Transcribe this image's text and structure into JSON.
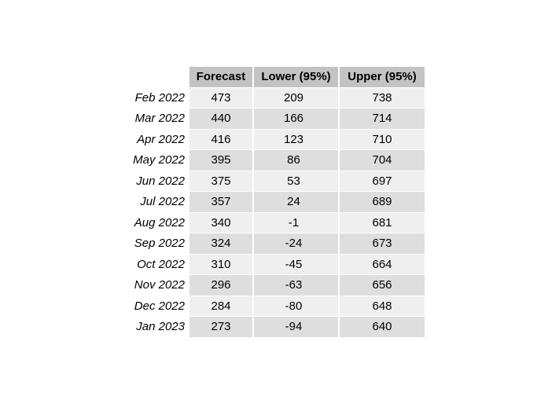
{
  "chart_data": {
    "type": "table",
    "columns": [
      "Forecast",
      "Lower (95%)",
      "Upper (95%)"
    ],
    "rows": [
      {
        "label": "Feb 2022",
        "values": [
          "473",
          "209",
          "738"
        ]
      },
      {
        "label": "Mar 2022",
        "values": [
          "440",
          "166",
          "714"
        ]
      },
      {
        "label": "Apr 2022",
        "values": [
          "416",
          "123",
          "710"
        ]
      },
      {
        "label": "May 2022",
        "values": [
          "395",
          "86",
          "704"
        ]
      },
      {
        "label": "Jun 2022",
        "values": [
          "375",
          "53",
          "697"
        ]
      },
      {
        "label": "Jul 2022",
        "values": [
          "357",
          "24",
          "689"
        ]
      },
      {
        "label": "Aug 2022",
        "values": [
          "340",
          "-1",
          "681"
        ]
      },
      {
        "label": "Sep 2022",
        "values": [
          "324",
          "-24",
          "673"
        ]
      },
      {
        "label": "Oct 2022",
        "values": [
          "310",
          "-45",
          "664"
        ]
      },
      {
        "label": "Nov 2022",
        "values": [
          "296",
          "-63",
          "656"
        ]
      },
      {
        "label": "Dec 2022",
        "values": [
          "284",
          "-80",
          "648"
        ]
      },
      {
        "label": "Jan 2023",
        "values": [
          "273",
          "-94",
          "640"
        ]
      }
    ]
  }
}
